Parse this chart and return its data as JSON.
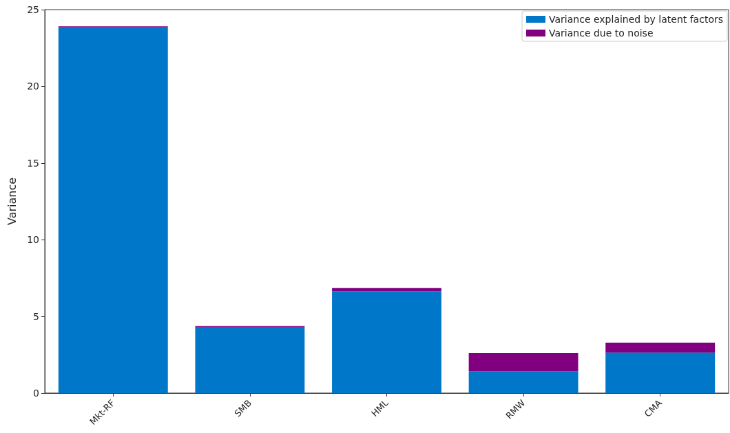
{
  "chart_data": {
    "type": "bar",
    "stacked": true,
    "ylabel": "Variance",
    "categories": [
      "Mkt-RF",
      "SMB",
      "HML",
      "RMW",
      "CMA"
    ],
    "series": [
      {
        "name": "Variance explained by latent factors",
        "color": "#0077c8",
        "values": [
          23.88,
          4.31,
          6.62,
          1.42,
          2.64
        ]
      },
      {
        "name": "Variance due to noise",
        "color": "#800080",
        "values": [
          0.03,
          0.06,
          0.24,
          1.18,
          0.65
        ]
      }
    ],
    "ylim": [
      0,
      25
    ],
    "yticks": [
      0,
      5,
      10,
      15,
      20,
      25
    ],
    "grid": false,
    "legend": "top right"
  }
}
